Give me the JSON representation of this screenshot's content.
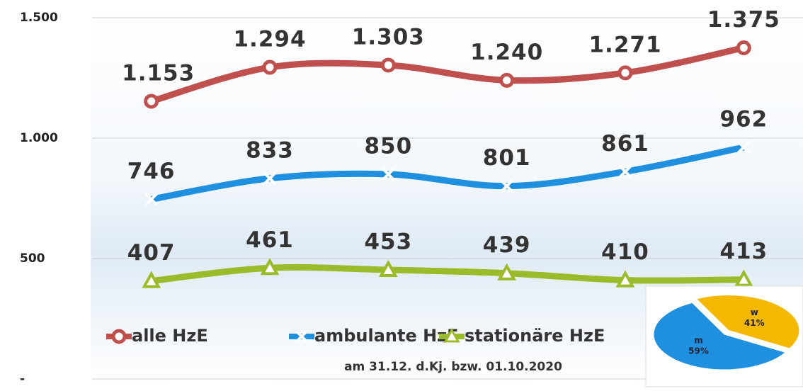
{
  "chart_data": [
    {
      "type": "line",
      "subtitle": "am 31.12. d.Kj. bzw. 01.10.2020",
      "categories": [
        null,
        null,
        null,
        null,
        null,
        null
      ],
      "series": [
        {
          "name": "alle HzE",
          "color": "#c0504d",
          "marker": "circle",
          "values": [
            1153,
            1294,
            1303,
            1240,
            1271,
            1375
          ],
          "value_labels": [
            "1.153",
            "1.294",
            "1.303",
            "1.240",
            "1.271",
            "1.375"
          ]
        },
        {
          "name": "ambulante HzE",
          "color": "#1f8fe0",
          "marker": "x",
          "values": [
            746,
            833,
            850,
            801,
            861,
            962
          ]
        },
        {
          "name": "stationäre HzE",
          "color": "#9bbb2a",
          "marker": "triangle",
          "values": [
            407,
            461,
            453,
            439,
            410,
            413
          ]
        }
      ],
      "ylim": [
        0,
        1500
      ],
      "yticks": [
        {
          "value": 0,
          "label": "-"
        },
        500,
        {
          "value": 1000,
          "label": "1.000"
        },
        {
          "value": 1500,
          "label": "1.500"
        }
      ],
      "grid": true
    },
    {
      "type": "pie",
      "categories": [
        "m",
        "w"
      ],
      "values": [
        59,
        41
      ],
      "value_labels": [
        "59%",
        "41%"
      ],
      "colors": [
        "#1f8fe0",
        "#f5b800"
      ]
    }
  ]
}
